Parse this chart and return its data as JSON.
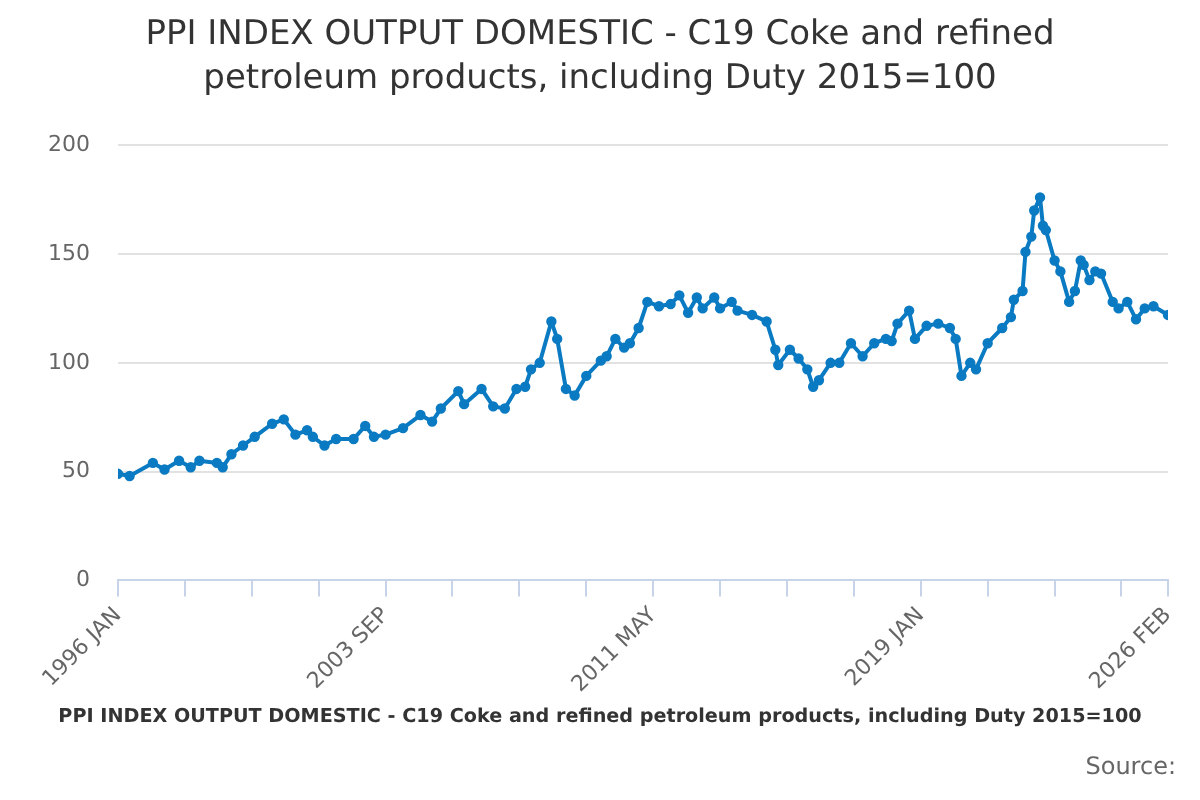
{
  "chart_data": {
    "type": "line",
    "title": "PPI INDEX OUTPUT DOMESTIC - C19 Coke and refined petroleum products, including Duty 2015=100",
    "annotations": [
      "PPI INDEX OUTPUT DOMESTIC - C19 Coke and refined petroleum products, including Duty 2015=100",
      "Source:"
    ],
    "x": [
      "1996-01",
      "1996-05",
      "1997-01",
      "1997-05",
      "1997-10",
      "1998-02",
      "1998-05",
      "1998-11",
      "1999-01",
      "1999-04",
      "1999-08",
      "1999-12",
      "2000-06",
      "2000-10",
      "2001-02",
      "2001-06",
      "2001-08",
      "2001-12",
      "2002-04",
      "2002-10",
      "2003-02",
      "2003-05",
      "2003-09",
      "2004-03",
      "2004-09",
      "2005-01",
      "2005-04",
      "2005-10",
      "2005-12",
      "2006-06",
      "2006-10",
      "2007-02",
      "2007-06",
      "2007-09",
      "2007-11",
      "2008-02",
      "2008-06",
      "2008-08",
      "2008-11",
      "2009-02",
      "2009-06",
      "2009-11",
      "2010-01",
      "2010-04",
      "2010-07",
      "2010-09",
      "2010-12",
      "2011-03",
      "2011-07",
      "2011-11",
      "2012-02",
      "2012-05",
      "2012-08",
      "2012-10",
      "2013-02",
      "2013-04",
      "2013-08",
      "2013-10",
      "2014-03",
      "2014-08",
      "2014-11",
      "2014-12",
      "2015-04",
      "2015-07",
      "2015-10",
      "2015-12",
      "2016-02",
      "2016-06",
      "2016-09",
      "2017-01",
      "2017-05",
      "2017-09",
      "2018-01",
      "2018-03",
      "2018-05",
      "2018-09",
      "2018-11",
      "2019-03",
      "2019-07",
      "2019-11",
      "2020-01",
      "2020-03",
      "2020-06",
      "2020-08",
      "2020-12",
      "2021-05",
      "2021-08",
      "2021-09",
      "2021-12",
      "2022-01",
      "2022-03",
      "2022-04",
      "2022-06",
      "2022-07",
      "2022-08",
      "2022-11",
      "2023-01",
      "2023-04",
      "2023-06",
      "2023-08",
      "2023-09",
      "2023-11",
      "2024-01",
      "2024-03",
      "2024-07",
      "2024-09",
      "2024-12",
      "2025-03",
      "2025-06",
      "2025-09",
      "2026-02"
    ],
    "series": [
      {
        "color": "#0a7ac2",
        "values": [
          49,
          48,
          54,
          51,
          55,
          52,
          55,
          54,
          52,
          58,
          62,
          66,
          72,
          74,
          67,
          69,
          66,
          62,
          65,
          65,
          71,
          66,
          67,
          70,
          76,
          73,
          79,
          87,
          81,
          88,
          80,
          79,
          88,
          89,
          97,
          100,
          119,
          111,
          88,
          85,
          94,
          101,
          103,
          111,
          107,
          109,
          116,
          128,
          126,
          127,
          131,
          123,
          130,
          125,
          130,
          125,
          128,
          124,
          122,
          119,
          106,
          99,
          106,
          102,
          97,
          89,
          92,
          100,
          100,
          109,
          103,
          109,
          111,
          110,
          118,
          124,
          111,
          117,
          118,
          116,
          111,
          94,
          100,
          97,
          109,
          116,
          121,
          129,
          133,
          151,
          158,
          170,
          176,
          163,
          161,
          147,
          142,
          128,
          133,
          147,
          145,
          138,
          142,
          141,
          128,
          125,
          128,
          120,
          125,
          126,
          122
        ]
      }
    ],
    "xlim": [
      "1996-01",
      "2026-02"
    ],
    "xticks": [
      {
        "value": "1996-01",
        "label": "1996 JAN"
      },
      {
        "value": "1997-12",
        "label": null
      },
      {
        "value": "1999-11",
        "label": null
      },
      {
        "value": "2001-10",
        "label": null
      },
      {
        "value": "2003-09",
        "label": "2003 SEP"
      },
      {
        "value": "2005-08",
        "label": null
      },
      {
        "value": "2007-07",
        "label": null
      },
      {
        "value": "2009-06",
        "label": null
      },
      {
        "value": "2011-05",
        "label": "2011 MAY"
      },
      {
        "value": "2013-04",
        "label": null
      },
      {
        "value": "2015-03",
        "label": null
      },
      {
        "value": "2017-02",
        "label": null
      },
      {
        "value": "2019-01",
        "label": "2019 JAN"
      },
      {
        "value": "2020-12",
        "label": null
      },
      {
        "value": "2022-11",
        "label": null
      },
      {
        "value": "2024-10",
        "label": null
      },
      {
        "value": "2026-02",
        "label": "2026 FEB"
      }
    ],
    "ylim": [
      0,
      200
    ],
    "yticks": [
      0,
      50,
      100,
      150,
      200
    ],
    "grid": "y",
    "legend": false,
    "marker": "circle",
    "line_style": "solid"
  }
}
